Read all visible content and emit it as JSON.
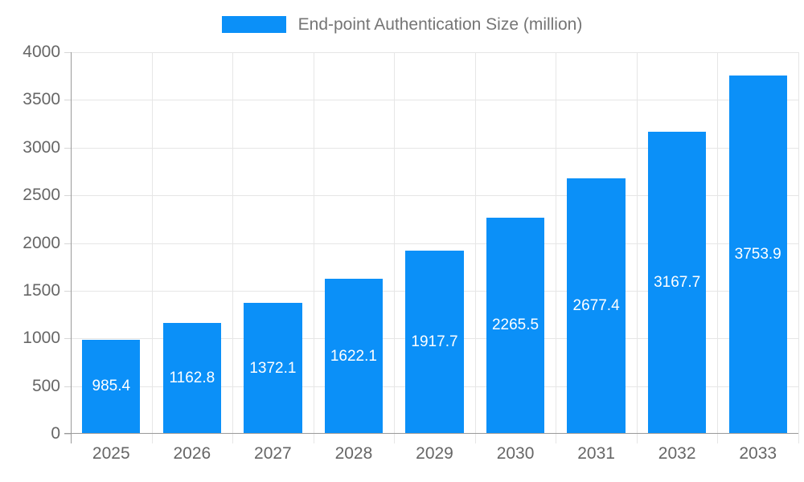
{
  "legend": {
    "items": [
      {
        "label": "End-point Authentication Size (million)",
        "color": "#0b90f8"
      }
    ],
    "position": "top-center"
  },
  "chart_data": {
    "type": "bar",
    "title": "End-point Authentication Size (million)",
    "series": [
      {
        "name": "End-point Authentication Size (million)",
        "values": [
          985.4,
          1162.8,
          1372.1,
          1622.1,
          1917.7,
          2265.5,
          2677.4,
          3167.7,
          3753.9
        ]
      }
    ],
    "categories": [
      "2025",
      "2026",
      "2027",
      "2028",
      "2029",
      "2030",
      "2031",
      "2032",
      "2033"
    ],
    "value_labels": [
      "985.4",
      "1162.8",
      "1372.1",
      "1622.1",
      "1917.7",
      "2265.5",
      "2677.4",
      "3167.7",
      "3753.9"
    ],
    "xlabel": "",
    "ylabel": "",
    "ylim": [
      0,
      4000
    ],
    "yticks": [
      0,
      500,
      1000,
      1500,
      2000,
      2500,
      3000,
      3500,
      4000
    ],
    "grid": "horizontal and vertical gridlines on",
    "legend_position": "top-center",
    "value_label_position": "centered inside bar"
  },
  "colors": {
    "bar": "#0b90f8",
    "axis_line": "#9a9a9a",
    "gridline": "#e6e6e6",
    "tick_label": "#666666",
    "legend_text": "#757575",
    "value_label": "#ffffff",
    "background": "#ffffff"
  }
}
